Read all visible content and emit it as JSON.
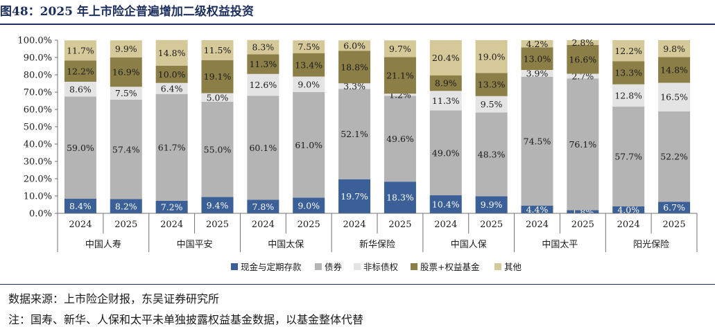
{
  "title": "图48：2025 年上市险企普遍增加二级权益投资",
  "source_note": "数据来源：上市险企财报，东吴证券研究所",
  "remark_note": "注：国寿、新华、人保和太平未单独披露权益基金数据，以基金整体代替",
  "chart_data": {
    "type": "bar",
    "stacked": true,
    "grid": false,
    "legend_position": "bottom",
    "y_ticks": [
      "0.0%",
      "10.0%",
      "20.0%",
      "30.0%",
      "40.0%",
      "50.0%",
      "60.0%",
      "70.0%",
      "80.0%",
      "90.0%",
      "100.0%"
    ],
    "ylim": [
      0,
      100
    ],
    "groups": [
      "中国人寿",
      "中国平安",
      "中国太保",
      "新华保险",
      "中国人保",
      "中国太平",
      "阳光保险"
    ],
    "years": [
      "2024",
      "2025"
    ],
    "categories": [
      "中国人寿 2024",
      "中国人寿 2025",
      "中国平安 2024",
      "中国平安 2025",
      "中国太保 2024",
      "中国太保 2025",
      "新华保险 2024",
      "新华保险 2025",
      "中国人保 2024",
      "中国人保 2025",
      "中国太平 2024",
      "中国太平 2025",
      "阳光保险 2024",
      "阳光保险 2025"
    ],
    "series": [
      {
        "name": "现金与定期存款",
        "color": "#3b5f97",
        "label_color": "#ffffff",
        "values": [
          8.4,
          8.2,
          7.2,
          9.4,
          7.8,
          9.0,
          19.7,
          18.3,
          10.4,
          9.9,
          4.4,
          1.8,
          4.0,
          6.7
        ],
        "labels": [
          "8.4%",
          "8.2%",
          "7.2%",
          "9.4%",
          "7.8%",
          "9.0%",
          "19.7%",
          "18.3%",
          "10.4%",
          "9.9%",
          "4.4%",
          "1.8%",
          "4.0%",
          "6.7%"
        ]
      },
      {
        "name": "债券",
        "color": "#b4b4b4",
        "label_color": "#1a1a1a",
        "values": [
          59.0,
          57.4,
          61.7,
          55.0,
          60.1,
          61.0,
          52.1,
          49.6,
          49.0,
          48.3,
          74.5,
          76.1,
          57.7,
          52.2
        ],
        "labels": [
          "59.0%",
          "57.4%",
          "61.7%",
          "55.0%",
          "60.1%",
          "61.0%",
          "52.1%",
          "49.6%",
          "49.0%",
          "48.3%",
          "74.5%",
          "76.1%",
          "57.7%",
          "52.2%"
        ]
      },
      {
        "name": "非标债权",
        "color": "#e4e4e4",
        "label_color": "#1a1a1a",
        "values": [
          8.6,
          7.5,
          6.4,
          5.0,
          12.6,
          9.0,
          3.3,
          1.2,
          11.3,
          9.5,
          3.9,
          2.7,
          12.8,
          16.5
        ],
        "labels": [
          "8.6%",
          "7.5%",
          "6.4%",
          "5.0%",
          "12.6%",
          "9.0%",
          "3.3%",
          "1.2%",
          "11.3%",
          "9.5%",
          "3.9%",
          "2.7%",
          "12.8%",
          "16.5%"
        ]
      },
      {
        "name": "股票+权益基金",
        "color": "#8b7f47",
        "label_color": "#1a1a1a",
        "values": [
          12.2,
          16.9,
          10.0,
          19.1,
          11.3,
          13.4,
          18.8,
          21.1,
          8.9,
          13.3,
          13.0,
          16.6,
          13.3,
          14.8
        ],
        "labels": [
          "12.2%",
          "16.9%",
          "10.0%",
          "19.1%",
          "11.3%",
          "13.4%",
          "18.8%",
          "21.1%",
          "8.9%",
          "13.3%",
          "13.0%",
          "16.6%",
          "13.3%",
          "14.8%"
        ]
      },
      {
        "name": "其他",
        "color": "#d5c99a",
        "label_color": "#1a1a1a",
        "values": [
          11.7,
          9.9,
          14.8,
          11.5,
          8.3,
          7.5,
          6.0,
          9.7,
          20.4,
          19.0,
          4.2,
          2.8,
          12.2,
          9.8
        ],
        "labels": [
          "11.7%",
          "9.9%",
          "14.8%",
          "11.5%",
          "8.3%",
          "7.5%",
          "6.0%",
          "9.7%",
          "20.4%",
          "19.0%",
          "4.2%",
          "2.8%",
          "12.2%",
          "9.8%"
        ]
      }
    ]
  }
}
